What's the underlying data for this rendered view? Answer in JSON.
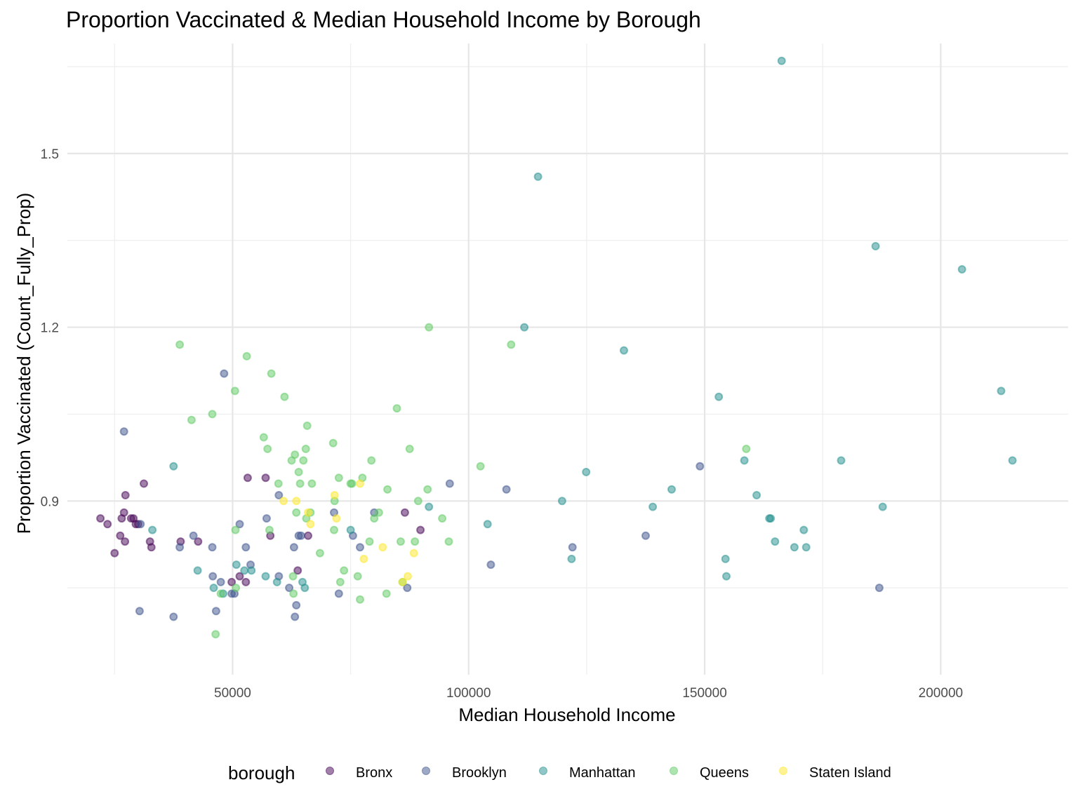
{
  "chart_data": {
    "type": "scatter",
    "title": "Proportion Vaccinated & Median Household Income by Borough",
    "xlabel": "Median Household Income",
    "ylabel": "Proportion Vaccinated (Count_Fully_Prop)",
    "xlim": [
      15000,
      227000
    ],
    "ylim": [
      0.6,
      1.69
    ],
    "x_ticks": [
      50000,
      100000,
      150000,
      200000
    ],
    "x_tick_labels": [
      "50000",
      "100000",
      "150000",
      "200000"
    ],
    "x_minor": [
      25000,
      75000,
      125000,
      175000
    ],
    "y_ticks": [
      0.9,
      1.2,
      1.5
    ],
    "y_tick_labels": [
      "0.9",
      "1.2",
      "1.5"
    ],
    "y_minor": [
      0.75,
      1.05,
      1.35,
      1.65
    ],
    "grid": true,
    "point_alpha": 0.5,
    "legend": {
      "title": "borough",
      "position": "bottom"
    },
    "series": [
      {
        "name": "Bronx",
        "color": "#440154",
        "points": [
          [
            22000,
            0.87
          ],
          [
            23500,
            0.86
          ],
          [
            25000,
            0.81
          ],
          [
            26200,
            0.84
          ],
          [
            26500,
            0.87
          ],
          [
            27000,
            0.88
          ],
          [
            27300,
            0.91
          ],
          [
            27200,
            0.83
          ],
          [
            28500,
            0.87
          ],
          [
            29000,
            0.87
          ],
          [
            29500,
            0.86
          ],
          [
            30000,
            0.86
          ],
          [
            31200,
            0.93
          ],
          [
            32500,
            0.83
          ],
          [
            32800,
            0.82
          ],
          [
            39000,
            0.83
          ],
          [
            42700,
            0.83
          ],
          [
            49800,
            0.76
          ],
          [
            51500,
            0.77
          ],
          [
            52800,
            0.76
          ],
          [
            53200,
            0.94
          ],
          [
            57000,
            0.94
          ],
          [
            58000,
            0.84
          ],
          [
            63800,
            0.78
          ],
          [
            66000,
            0.84
          ],
          [
            86500,
            0.88
          ],
          [
            89800,
            0.85
          ]
        ]
      },
      {
        "name": "Brooklyn",
        "color": "#3b528b",
        "points": [
          [
            27000,
            1.02
          ],
          [
            30300,
            0.71
          ],
          [
            30500,
            0.86
          ],
          [
            37500,
            0.7
          ],
          [
            38800,
            0.82
          ],
          [
            41700,
            0.84
          ],
          [
            45700,
            0.82
          ],
          [
            45800,
            0.77
          ],
          [
            46500,
            0.71
          ],
          [
            47500,
            0.76
          ],
          [
            48200,
            1.12
          ],
          [
            49800,
            0.74
          ],
          [
            50400,
            0.74
          ],
          [
            51500,
            0.86
          ],
          [
            52800,
            0.82
          ],
          [
            53800,
            0.79
          ],
          [
            59800,
            0.91
          ],
          [
            59800,
            0.77
          ],
          [
            57200,
            0.87
          ],
          [
            62000,
            0.75
          ],
          [
            63000,
            0.82
          ],
          [
            63200,
            0.7
          ],
          [
            63500,
            0.72
          ],
          [
            64000,
            0.84
          ],
          [
            64500,
            0.84
          ],
          [
            71500,
            0.88
          ],
          [
            72500,
            0.74
          ],
          [
            75500,
            0.84
          ],
          [
            77000,
            0.82
          ],
          [
            80000,
            0.88
          ],
          [
            96000,
            0.93
          ],
          [
            104700,
            0.79
          ],
          [
            108000,
            0.92
          ],
          [
            122000,
            0.82
          ],
          [
            137500,
            0.84
          ],
          [
            149000,
            0.96
          ],
          [
            187000,
            0.75
          ],
          [
            87000,
            0.75
          ]
        ]
      },
      {
        "name": "Manhattan",
        "color": "#21908d",
        "points": [
          [
            33000,
            0.85
          ],
          [
            37500,
            0.96
          ],
          [
            42600,
            0.78
          ],
          [
            46000,
            0.75
          ],
          [
            48000,
            0.74
          ],
          [
            50800,
            0.79
          ],
          [
            52500,
            0.78
          ],
          [
            54000,
            0.78
          ],
          [
            57000,
            0.77
          ],
          [
            59400,
            0.76
          ],
          [
            64800,
            0.76
          ],
          [
            65300,
            0.75
          ],
          [
            75000,
            0.85
          ],
          [
            91600,
            0.89
          ],
          [
            104000,
            0.86
          ],
          [
            111800,
            1.2
          ],
          [
            114700,
            1.46
          ],
          [
            119800,
            0.9
          ],
          [
            121800,
            0.8
          ],
          [
            124900,
            0.95
          ],
          [
            132900,
            1.16
          ],
          [
            139000,
            0.89
          ],
          [
            143000,
            0.92
          ],
          [
            153000,
            1.08
          ],
          [
            154400,
            0.8
          ],
          [
            154600,
            0.77
          ],
          [
            158400,
            0.97
          ],
          [
            161000,
            0.91
          ],
          [
            163700,
            0.87
          ],
          [
            164000,
            0.87
          ],
          [
            164900,
            0.83
          ],
          [
            166300,
            1.66
          ],
          [
            169000,
            0.82
          ],
          [
            171000,
            0.85
          ],
          [
            171500,
            0.82
          ],
          [
            178900,
            0.97
          ],
          [
            186200,
            1.34
          ],
          [
            187700,
            0.89
          ],
          [
            204500,
            1.3
          ],
          [
            212800,
            1.09
          ],
          [
            215200,
            0.97
          ]
        ]
      },
      {
        "name": "Queens",
        "color": "#5ec962",
        "points": [
          [
            38800,
            1.17
          ],
          [
            41300,
            1.04
          ],
          [
            45700,
            1.05
          ],
          [
            46400,
            0.67
          ],
          [
            47500,
            0.74
          ],
          [
            50500,
            1.09
          ],
          [
            50600,
            0.85
          ],
          [
            50700,
            0.75
          ],
          [
            53000,
            1.15
          ],
          [
            56600,
            1.01
          ],
          [
            57400,
            0.99
          ],
          [
            57800,
            0.85
          ],
          [
            58200,
            1.12
          ],
          [
            59700,
            0.93
          ],
          [
            61000,
            1.08
          ],
          [
            62500,
            0.97
          ],
          [
            62800,
            0.77
          ],
          [
            62900,
            0.74
          ],
          [
            63200,
            0.98
          ],
          [
            63500,
            0.88
          ],
          [
            64000,
            0.95
          ],
          [
            64300,
            0.93
          ],
          [
            65000,
            0.97
          ],
          [
            65500,
            0.99
          ],
          [
            65600,
            0.87
          ],
          [
            65800,
            1.03
          ],
          [
            66500,
            0.88
          ],
          [
            66800,
            0.93
          ],
          [
            68500,
            0.81
          ],
          [
            71300,
            1.0
          ],
          [
            71500,
            0.85
          ],
          [
            71600,
            0.9
          ],
          [
            72500,
            0.94
          ],
          [
            72800,
            0.76
          ],
          [
            73600,
            0.78
          ],
          [
            75000,
            0.93
          ],
          [
            75300,
            0.93
          ],
          [
            76500,
            0.77
          ],
          [
            77000,
            0.73
          ],
          [
            77500,
            0.94
          ],
          [
            79000,
            0.83
          ],
          [
            79400,
            0.97
          ],
          [
            80000,
            0.87
          ],
          [
            81000,
            0.88
          ],
          [
            82600,
            0.74
          ],
          [
            82800,
            0.92
          ],
          [
            84800,
            1.06
          ],
          [
            85600,
            0.83
          ],
          [
            86000,
            0.76
          ],
          [
            87500,
            0.99
          ],
          [
            88600,
            0.83
          ],
          [
            89300,
            0.9
          ],
          [
            91300,
            0.92
          ],
          [
            91600,
            1.2
          ],
          [
            94400,
            0.87
          ],
          [
            95800,
            0.83
          ],
          [
            102500,
            0.96
          ],
          [
            109000,
            1.17
          ],
          [
            158800,
            0.99
          ]
        ]
      },
      {
        "name": "Staten Island",
        "color": "#fde725",
        "points": [
          [
            60800,
            0.9
          ],
          [
            63500,
            0.9
          ],
          [
            66000,
            0.88
          ],
          [
            66500,
            0.86
          ],
          [
            71600,
            0.91
          ],
          [
            72000,
            0.87
          ],
          [
            77000,
            0.93
          ],
          [
            77800,
            0.8
          ],
          [
            81800,
            0.82
          ],
          [
            86000,
            0.76
          ],
          [
            87100,
            0.77
          ],
          [
            88400,
            0.81
          ]
        ]
      }
    ]
  }
}
